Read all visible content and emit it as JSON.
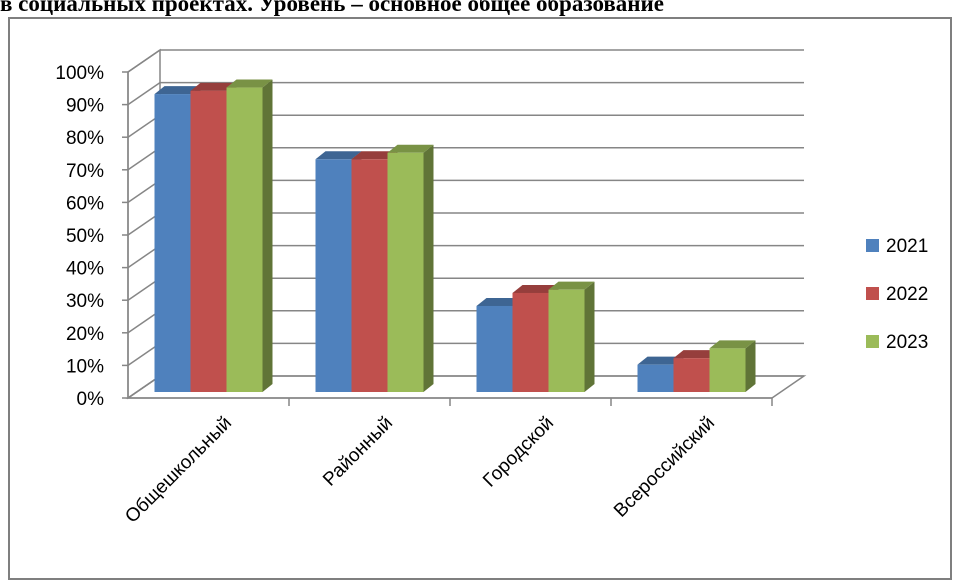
{
  "page": {
    "title": "в социальных проектах. Уровень – основное общее образование"
  },
  "chart_data": {
    "type": "bar",
    "title": "",
    "xlabel": "",
    "ylabel": "",
    "ylim": [
      0,
      100
    ],
    "y_ticks": [
      "0%",
      "10%",
      "20%",
      "30%",
      "40%",
      "50%",
      "60%",
      "70%",
      "80%",
      "90%",
      "100%"
    ],
    "categories": [
      "Общешкольный",
      "Районный",
      "Городской",
      "Всероссийский"
    ],
    "series": [
      {
        "name": "2021",
        "values": [
          92,
          72,
          27,
          9
        ],
        "color": "#4F81BD"
      },
      {
        "name": "2022",
        "values": [
          93,
          72,
          31,
          11
        ],
        "color": "#C0504D"
      },
      {
        "name": "2023",
        "values": [
          94,
          74,
          32,
          14
        ],
        "color": "#9BBB59"
      }
    ],
    "legend_position": "right",
    "grid": true,
    "style": "3d-clustered-column"
  }
}
